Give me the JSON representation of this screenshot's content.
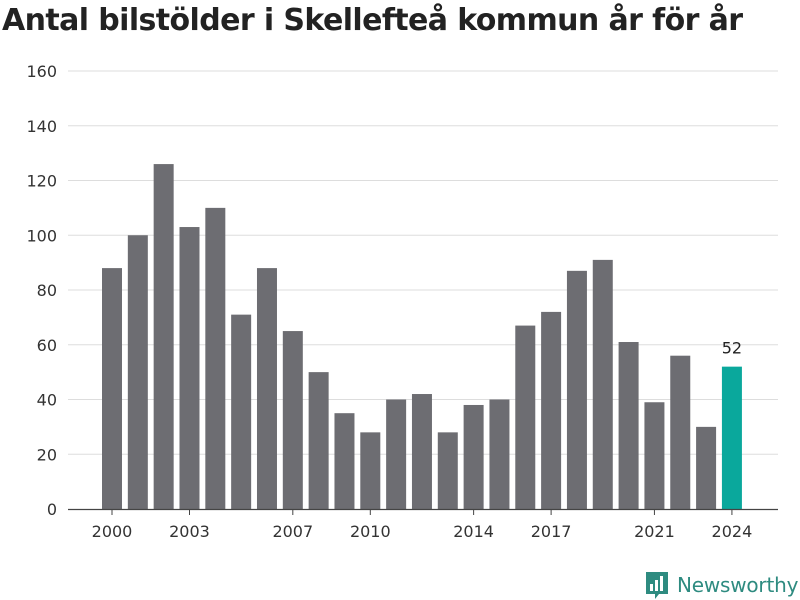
{
  "title": "Antal bilstölder i Skellefteå kommun år för år",
  "brand": {
    "name": "Newsworthy",
    "icon": "newsworthy-logo-icon"
  },
  "colors": {
    "bar": "#6d6d72",
    "highlight": "#0aa89c",
    "grid": "#dddddd",
    "axis": "#444444",
    "brand": "#2e8b80"
  },
  "chart_data": {
    "type": "bar",
    "title": "Antal bilstölder i Skellefteå kommun år för år",
    "xlabel": "",
    "ylabel": "",
    "ylim": [
      0,
      160
    ],
    "yticks": [
      0,
      20,
      40,
      60,
      80,
      100,
      120,
      140,
      160
    ],
    "xticks": [
      "2000",
      "2003",
      "2007",
      "2010",
      "2014",
      "2017",
      "2021",
      "2024"
    ],
    "categories": [
      "2000",
      "2001",
      "2002",
      "2003",
      "2004",
      "2005",
      "2006",
      "2007",
      "2008",
      "2009",
      "2010",
      "2011",
      "2012",
      "2013",
      "2014",
      "2015",
      "2016",
      "2017",
      "2018",
      "2019",
      "2020",
      "2021",
      "2022",
      "2023",
      "2024"
    ],
    "values": [
      88,
      100,
      126,
      103,
      110,
      71,
      88,
      65,
      50,
      35,
      28,
      40,
      42,
      28,
      38,
      40,
      67,
      72,
      87,
      91,
      61,
      39,
      56,
      30,
      52
    ],
    "highlight": {
      "category": "2024",
      "label": "52"
    },
    "grid": true,
    "legend": "none"
  }
}
